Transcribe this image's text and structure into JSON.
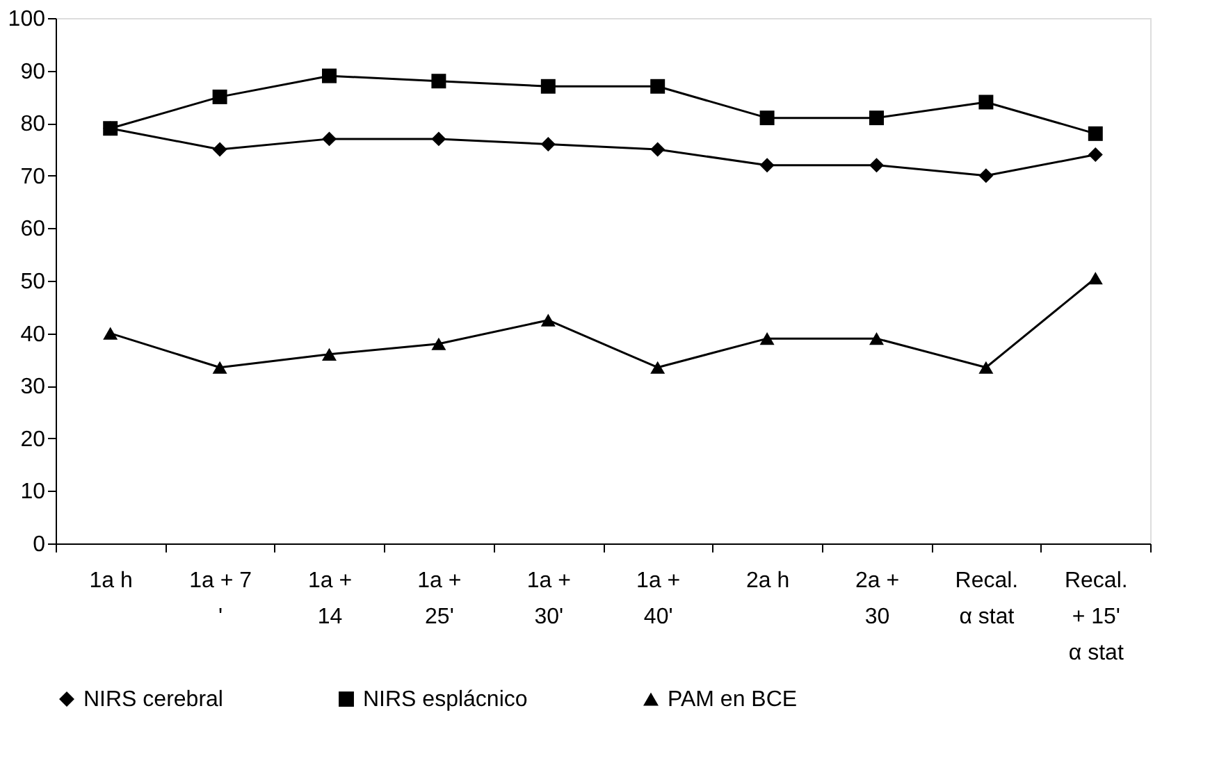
{
  "chart_data": {
    "type": "line",
    "categories": [
      "1a h",
      "1a + 7 '",
      "1a + 14",
      "1a + 25'",
      "1a + 30'",
      "1a + 40'",
      "2a h",
      "2a + 30",
      "Recal. α stat",
      "Recal. + 15' α stat"
    ],
    "series": [
      {
        "name": "NIRS cerebral",
        "color": "#000000",
        "marker": "diamond",
        "values": [
          79,
          75,
          77,
          77,
          76,
          75,
          72,
          72,
          70,
          74
        ]
      },
      {
        "name": "NIRS esplácnico",
        "color": "#000000",
        "marker": "square",
        "values": [
          79,
          85,
          89,
          88,
          87,
          87,
          81,
          81,
          84,
          78
        ]
      },
      {
        "name": "PAM en BCE",
        "color": "#000000",
        "marker": "triangle",
        "values": [
          40,
          33.5,
          36,
          38,
          42.5,
          33.5,
          39,
          39,
          33.5,
          50.5
        ]
      }
    ],
    "ylim": [
      0,
      100
    ],
    "yticks": [
      0,
      10,
      20,
      30,
      40,
      50,
      60,
      70,
      80,
      90,
      100
    ],
    "grid": false,
    "legend": "bottom",
    "line_style": "solid"
  }
}
